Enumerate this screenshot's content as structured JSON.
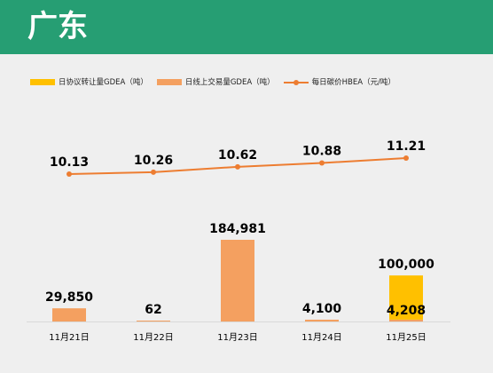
{
  "header": {
    "title": "广东"
  },
  "colors": {
    "banner": "#269e73",
    "agreement_bar": "#ffc000",
    "online_bar": "#f4a060",
    "price_line": "#ed7d31"
  },
  "chart_data": {
    "type": "bar+line",
    "categories": [
      "11月21日",
      "11月22日",
      "11月23日",
      "11月24日",
      "11月25日"
    ],
    "legend_position": "top-left",
    "grid": false,
    "series": [
      {
        "name": "日协议转让量GDEA（吨）",
        "type": "bar",
        "values": [
          0,
          0,
          0,
          0,
          100000
        ],
        "labels": [
          "",
          "",
          "",
          "",
          "100,000"
        ]
      },
      {
        "name": "日线上交易量GDEA（吨）",
        "type": "bar",
        "values": [
          29850,
          62,
          184981,
          4100,
          4208
        ],
        "labels": [
          "29,850",
          "62",
          "184,981",
          "4,100",
          "4,208"
        ]
      },
      {
        "name": "每日碳价HBEA（元/吨）",
        "type": "line",
        "values": [
          10.13,
          10.26,
          10.62,
          10.88,
          11.21
        ],
        "labels": [
          "10.13",
          "10.26",
          "10.62",
          "10.88",
          "11.21"
        ]
      }
    ]
  }
}
